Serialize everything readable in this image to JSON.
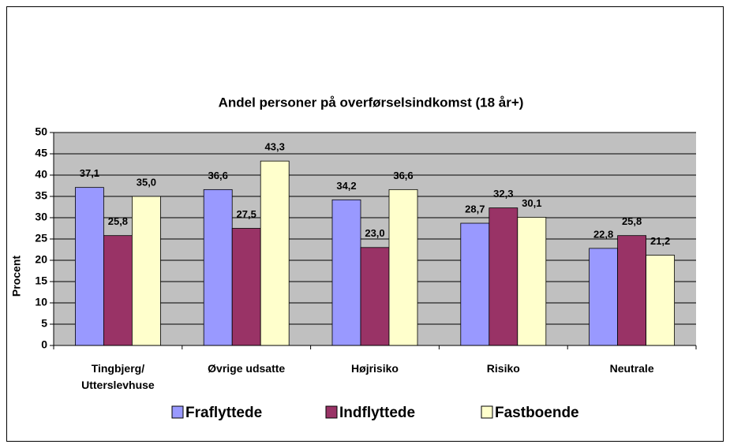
{
  "chart_data": {
    "type": "bar",
    "title": "Andel personer på overførselsindkomst (18 år+)",
    "ylabel": "Procent",
    "categories": [
      "Tingbjerg/\nUtterslevhuse",
      "Øvrige udsatte",
      "Højrisiko",
      "Risiko",
      "Neutrale"
    ],
    "series": [
      {
        "name": "Fraflyttede",
        "color": "#9999ff",
        "values": [
          37.1,
          36.6,
          34.2,
          28.7,
          22.8
        ],
        "value_labels": [
          "37,1",
          "36,6",
          "34,2",
          "28,7",
          "22,8"
        ]
      },
      {
        "name": "Indflyttede",
        "color": "#993366",
        "values": [
          25.8,
          27.5,
          23.0,
          32.3,
          25.8
        ],
        "value_labels": [
          "25,8",
          "27,5",
          "23,0",
          "32,3",
          "25,8"
        ]
      },
      {
        "name": "Fastboende",
        "color": "#ffffcc",
        "values": [
          35.0,
          43.3,
          36.6,
          30.1,
          21.2
        ],
        "value_labels": [
          "35,0",
          "43,3",
          "36,6",
          "30,1",
          "21,2"
        ]
      }
    ],
    "ylim": [
      0,
      50
    ],
    "yticks": [
      0,
      5,
      10,
      15,
      20,
      25,
      30,
      35,
      40,
      45,
      50
    ],
    "grid": true,
    "legend": "bottom"
  }
}
